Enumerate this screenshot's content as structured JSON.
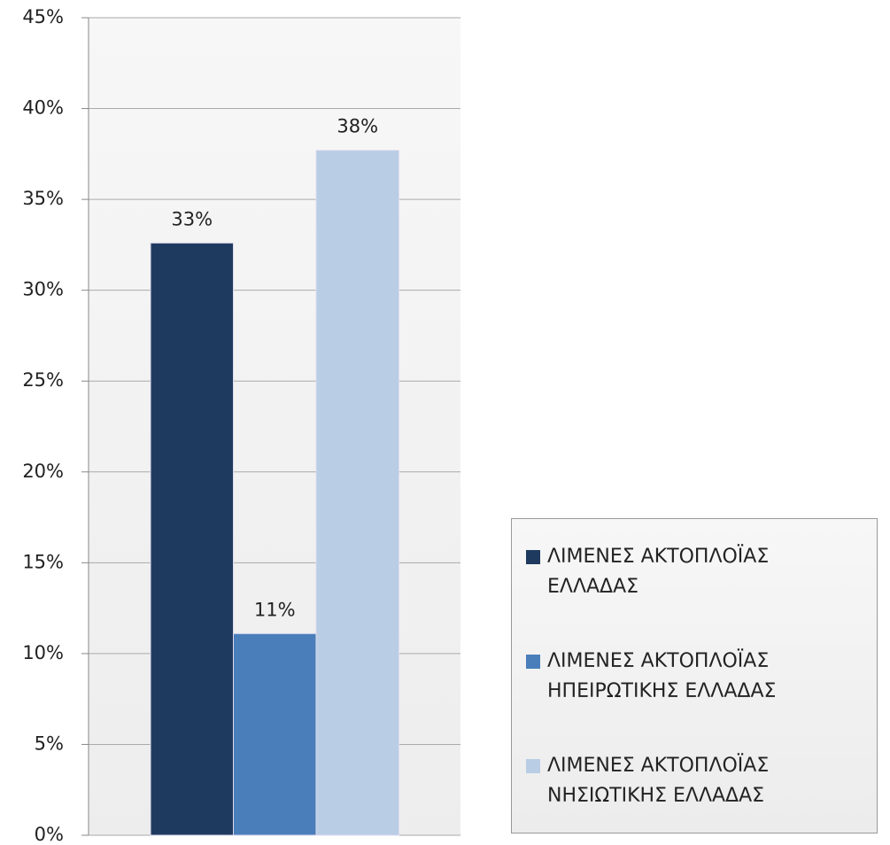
{
  "chart_data": {
    "type": "bar",
    "series": [
      {
        "name": "ΛΙΜΕΝΕΣ ΑΚΤΟΠΛΟΪΑΣ ΕΛΛΑΔΑΣ",
        "color": "#1f3a5f",
        "values": [
          32.6
        ],
        "value_labels": [
          "33%"
        ]
      },
      {
        "name": "ΛΙΜΕΝΕΣ ΑΚΤΟΠΛΟΪΑΣ ΗΠΕΙΡΩΤΙΚΗΣ ΕΛΛΑΔΑΣ",
        "color": "#4a7ebb",
        "values": [
          11.1
        ],
        "value_labels": [
          "11%"
        ]
      },
      {
        "name": "ΛΙΜΕΝΕΣ ΑΚΤΟΠΛΟΪΑΣ ΝΗΣΙΩΤΙΚΗΣ ΕΛΛΑΔΑΣ",
        "color": "#b9cde5",
        "values": [
          37.7
        ],
        "value_labels": [
          "38%"
        ]
      }
    ],
    "ylim": [
      0,
      45
    ],
    "yticks": [
      {
        "value": 0,
        "label": "0%"
      },
      {
        "value": 5,
        "label": "5%"
      },
      {
        "value": 10,
        "label": "10%"
      },
      {
        "value": 15,
        "label": "15%"
      },
      {
        "value": 20,
        "label": "20%"
      },
      {
        "value": 25,
        "label": "25%"
      },
      {
        "value": 30,
        "label": "30%"
      },
      {
        "value": 35,
        "label": "35%"
      },
      {
        "value": 40,
        "label": "40%"
      },
      {
        "value": 45,
        "label": "45%"
      }
    ],
    "grid": true,
    "legend": "right"
  }
}
